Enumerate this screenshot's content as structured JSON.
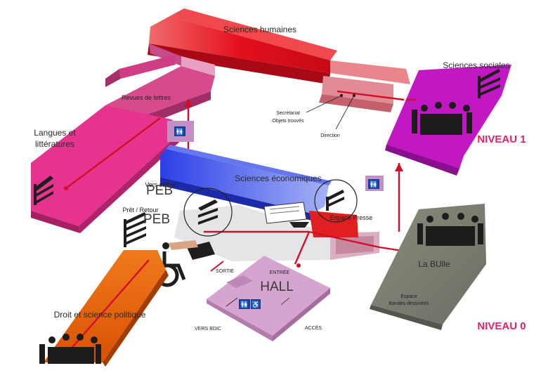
{
  "map": {
    "zones": {
      "sciences_humaines": "Sciences humaines",
      "sciences_sociales": "Sciences sociales",
      "revues_lettres": "Revues de lettres",
      "langues_litteratures_l1": "Langues et",
      "langues_litteratures_l2": "littératures",
      "sciences_economiques": "Sciences économiques",
      "droit_science_politique": "Droit et science politique",
      "la_bulle": "La BUlle",
      "espace_bd_l1": "Espace",
      "espace_bd_l2": "Bandes dessinées",
      "hall": "HALL",
      "espace_presse": "Espace Presse",
      "pret_retour": "Prêt / Retour",
      "vers_salles": "Vers salles"
    },
    "services": {
      "secretariat": "Secrétariat",
      "objets_trouves": "Objets trouvés",
      "direction": "Direction"
    },
    "entrances": {
      "sortie": "SORTIE",
      "entree": "ENTRÉE",
      "vers_bdic": "VERS BDIC",
      "acces": "ACCÈS"
    },
    "levels": {
      "level1": "NIVEAU 1",
      "level0": "NIVEAU 0"
    },
    "overlays": {
      "peb1": "PEB",
      "peb2": "PEB"
    },
    "colors": {
      "red": "#e3101e",
      "pink": "#e5338e",
      "magenta": "#c218c4",
      "blue": "#3a4fe0",
      "orange": "#e85e0a",
      "grey": "#7d7d74",
      "hall": "#d5a4cf",
      "level": "#e81f63"
    }
  }
}
